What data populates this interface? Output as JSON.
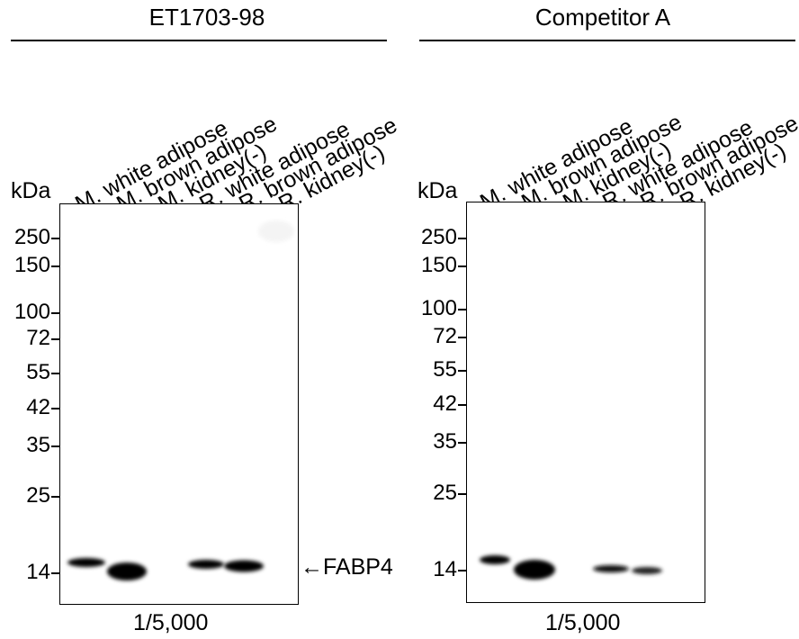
{
  "panels": [
    {
      "title": "ET1703-98",
      "kda_label": "kDa",
      "lanes": [
        "M. white adipose",
        "M. brown adipose",
        "M. kidney(-)",
        "R. white adipose",
        "R. brown adipose",
        "R. kidney(-)"
      ],
      "markers": [
        "250",
        "150",
        "100",
        "72",
        "55",
        "42",
        "35",
        "25",
        "14"
      ],
      "dilution": "1/5,000",
      "band_label": "FABP4",
      "band_intensities": [
        0.85,
        1.0,
        0.0,
        0.8,
        0.9,
        0.0
      ]
    },
    {
      "title": "Competitor A",
      "kda_label": "kDa",
      "lanes": [
        "M. white adipose",
        "M. brown adipose",
        "M. kidney(-)",
        "R. white adipose",
        "R. brown adipose",
        "R. kidney(-)"
      ],
      "markers": [
        "250",
        "150",
        "100",
        "72",
        "55",
        "42",
        "35",
        "25",
        "14"
      ],
      "dilution": "1/5,000",
      "band_intensities": [
        0.85,
        1.0,
        0.0,
        0.55,
        0.45,
        0.0
      ]
    }
  ],
  "band_arrow": "←"
}
